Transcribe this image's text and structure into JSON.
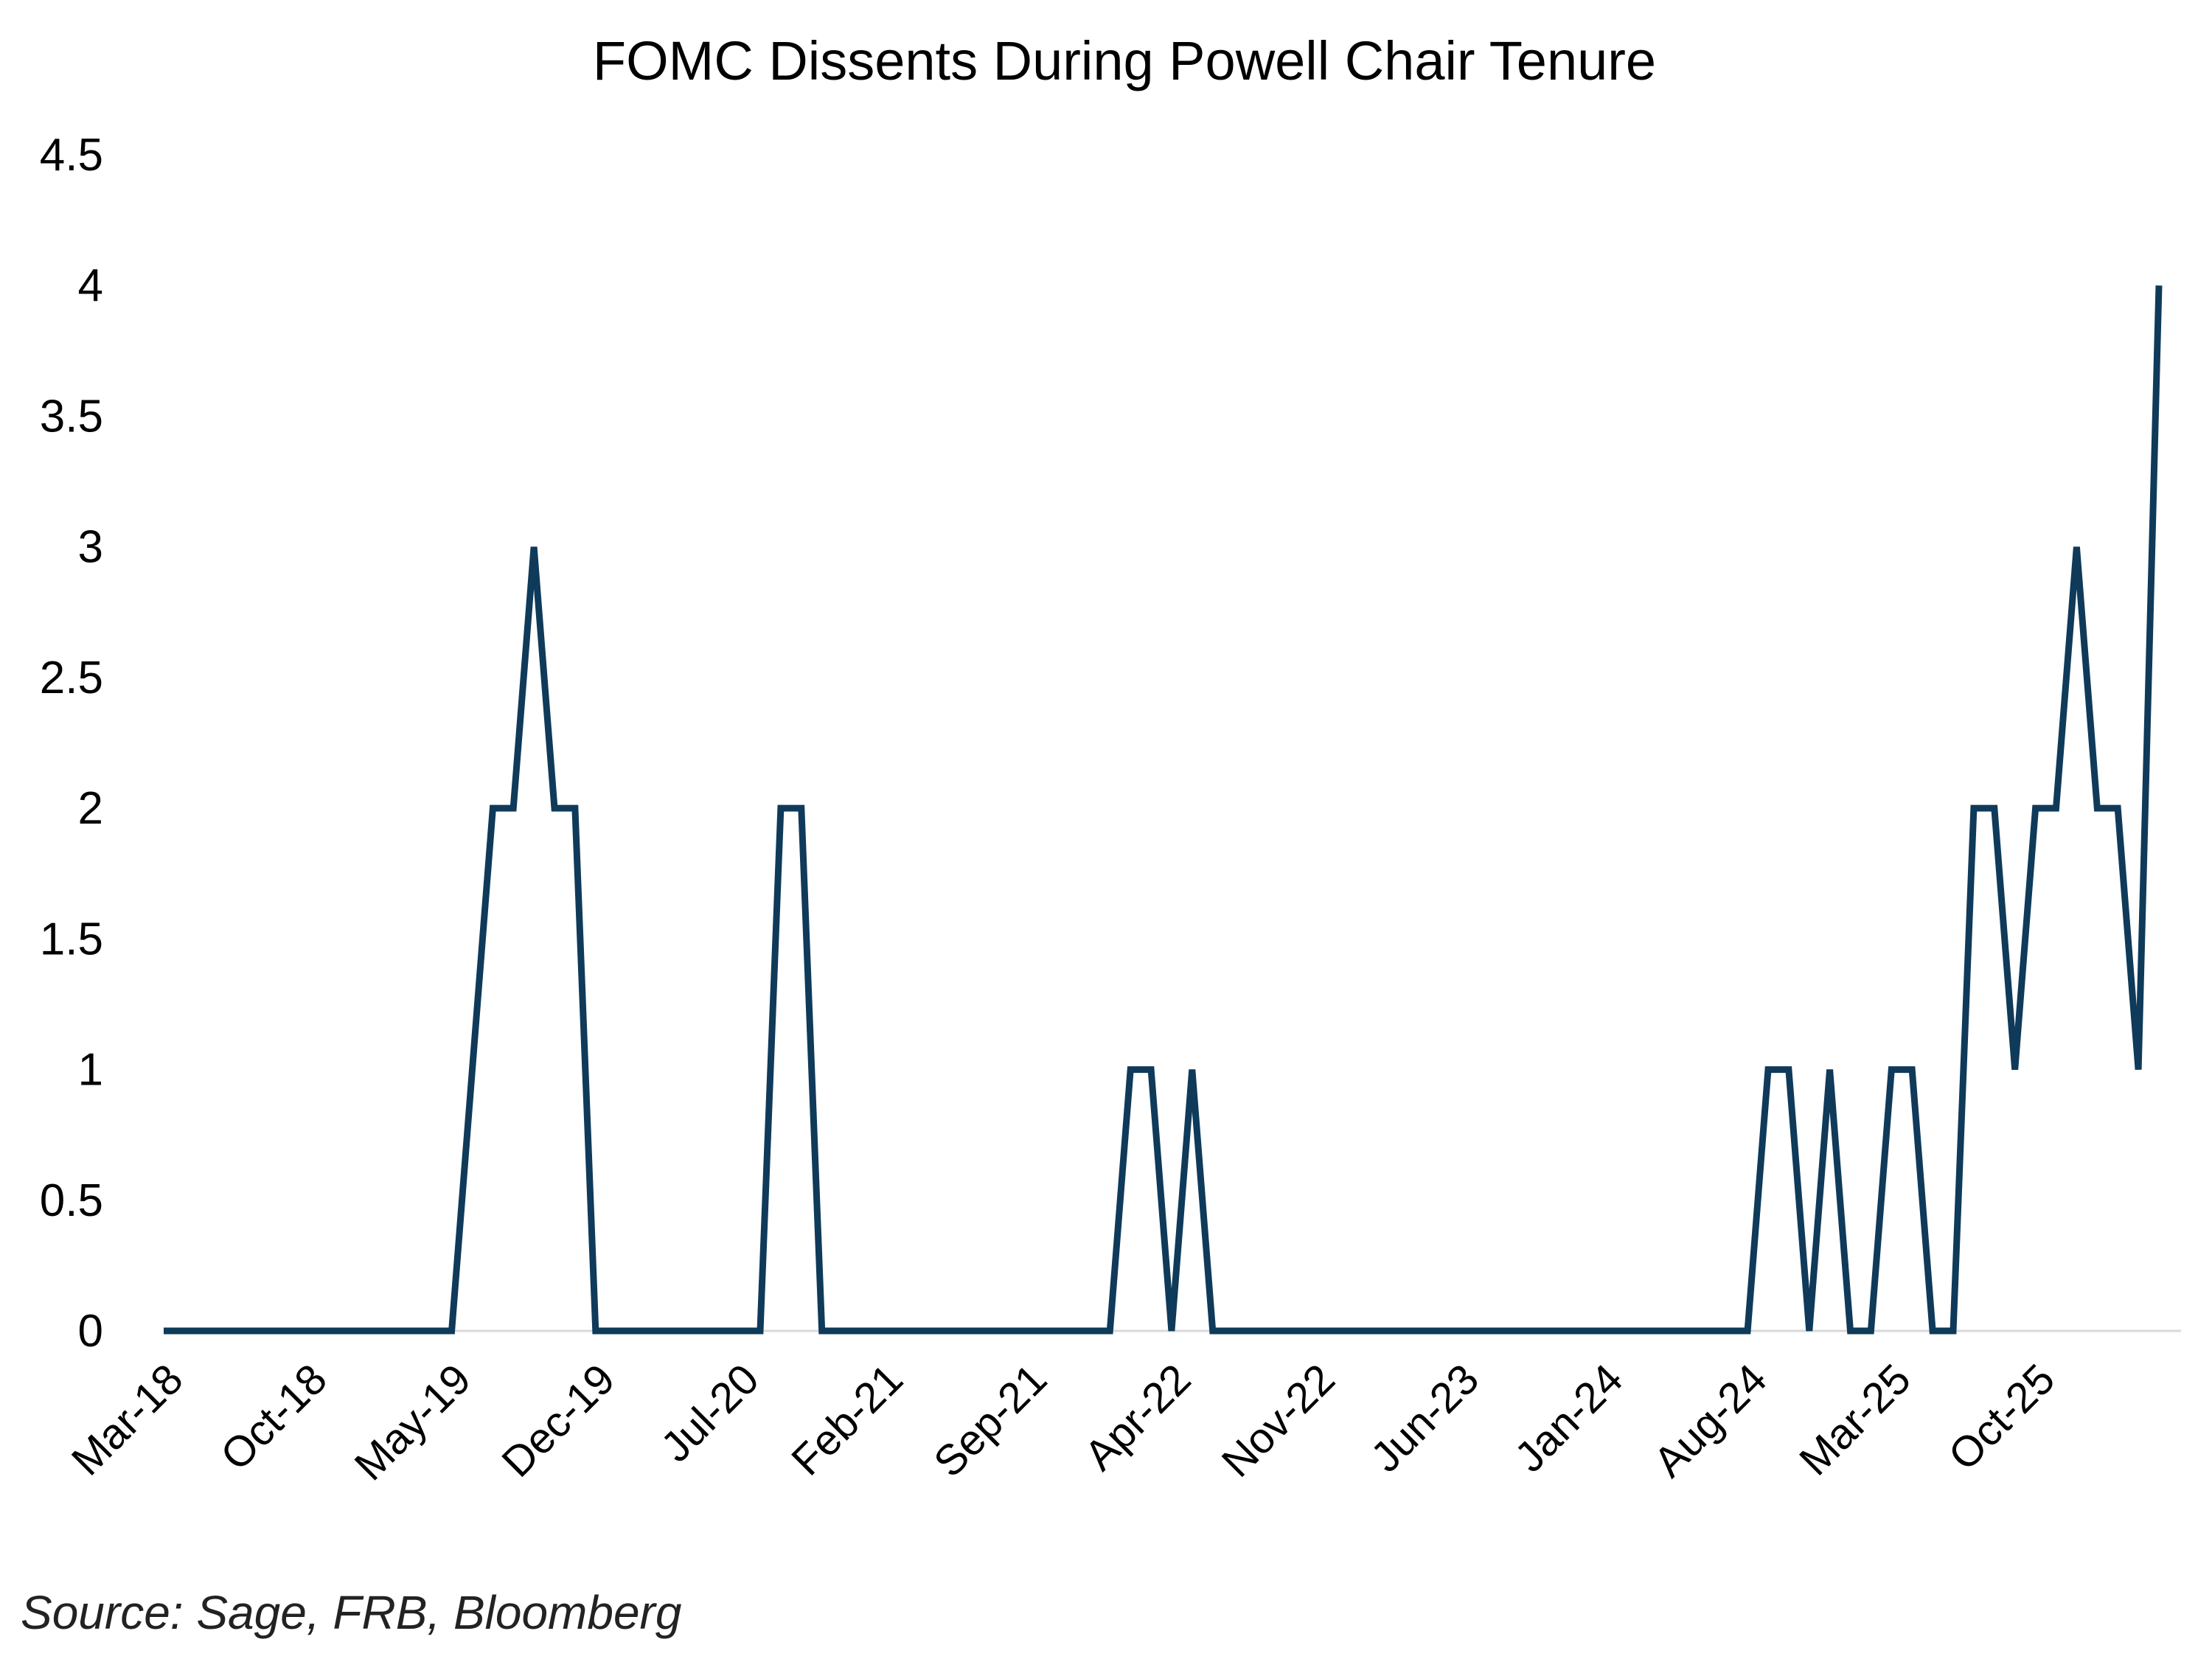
{
  "chart_data": {
    "type": "line",
    "title": "FOMC Dissents During Powell Chair Tenure",
    "xlabel": "",
    "ylabel": "",
    "ylim": [
      0,
      4.5
    ],
    "yticks": [
      "0",
      "0.5",
      "1",
      "1.5",
      "2",
      "2.5",
      "3",
      "3.5",
      "4",
      "4.5"
    ],
    "xticks": [
      "Mar-18",
      "Oct-18",
      "May-19",
      "Dec-19",
      "Jul-20",
      "Feb-21",
      "Sep-21",
      "Apr-22",
      "Nov-22",
      "Jun-23",
      "Jan-24",
      "Aug-24",
      "Mar-25",
      "Oct-25"
    ],
    "grid": false,
    "legend": "none",
    "line_color": "#0f3a5a",
    "series": [
      {
        "values": [
          0,
          0,
          0,
          0,
          0,
          0,
          0,
          0,
          0,
          0,
          0,
          0,
          0,
          0,
          0,
          1,
          2,
          2,
          3,
          2,
          2,
          0,
          0,
          0,
          0,
          0,
          0,
          0,
          0,
          0,
          2,
          2,
          0,
          0,
          0,
          0,
          0,
          0,
          0,
          0,
          0,
          0,
          0,
          0,
          0,
          0,
          0,
          1,
          1,
          0,
          1,
          0,
          0,
          0,
          0,
          0,
          0,
          0,
          0,
          0,
          0,
          0,
          0,
          0,
          0,
          0,
          0,
          0,
          0,
          0,
          0,
          0,
          0,
          0,
          0,
          0,
          0,
          0,
          1,
          1,
          0,
          1,
          0,
          0,
          1,
          1,
          0,
          0,
          2,
          2,
          1,
          2,
          2,
          3,
          2,
          2,
          1,
          4
        ]
      }
    ]
  },
  "source": "Source: Sage, FRB, Bloomberg"
}
